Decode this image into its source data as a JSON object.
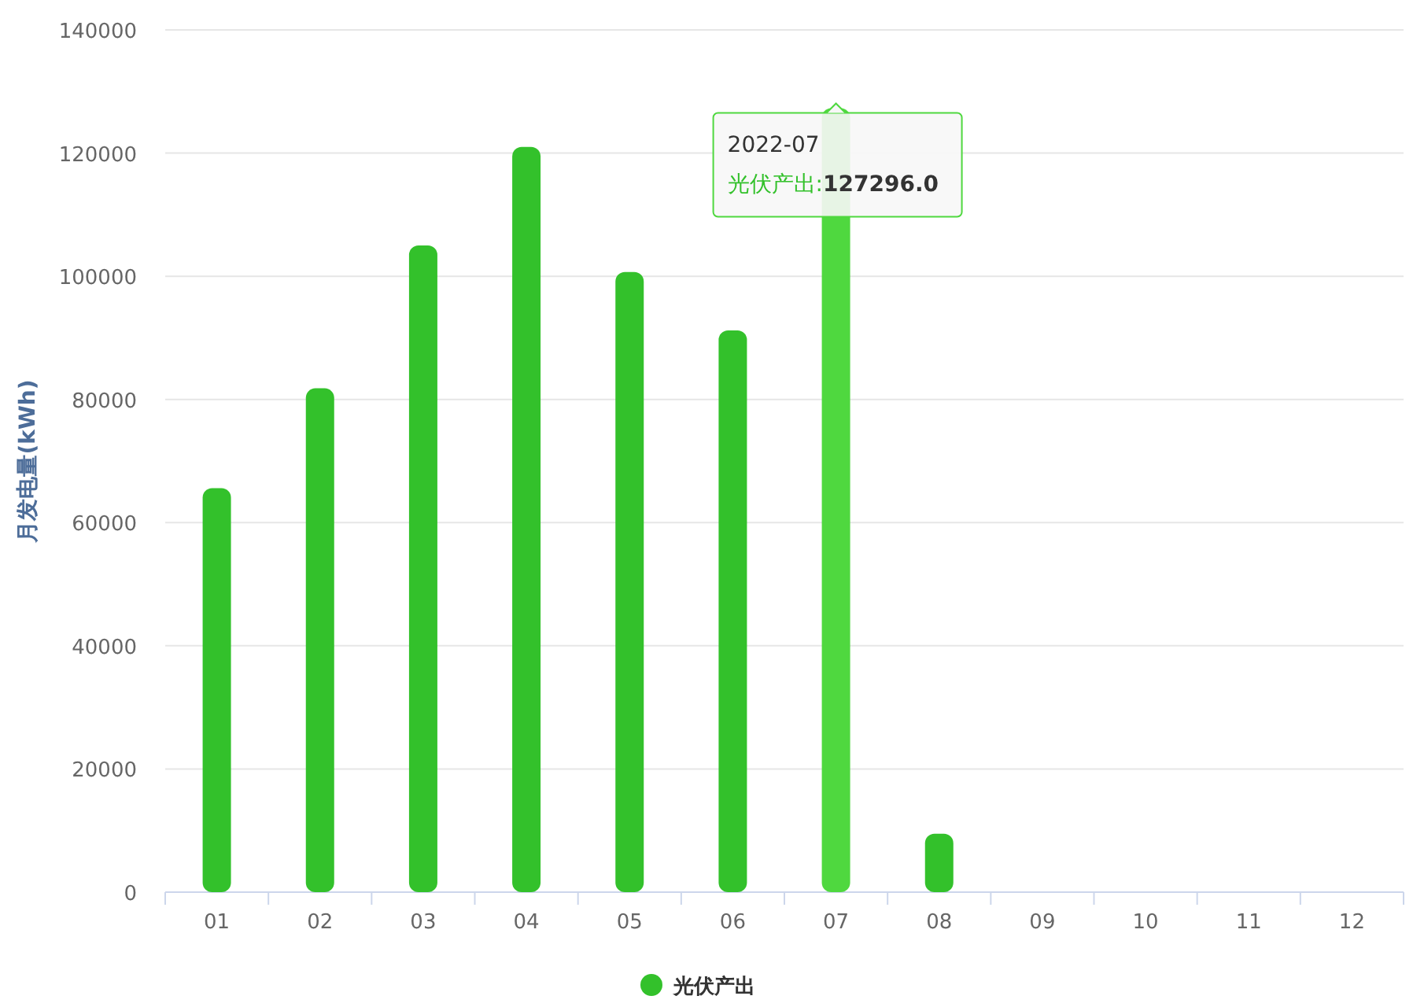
{
  "chart_data": {
    "type": "bar",
    "categories": [
      "01",
      "02",
      "03",
      "04",
      "05",
      "06",
      "07",
      "08",
      "09",
      "10",
      "11",
      "12"
    ],
    "series": [
      {
        "name": "光伏产出",
        "color": "#33c12b",
        "colors": [
          "#33c12b",
          "#33c12b",
          "#33c12b",
          "#33c12b",
          "#33c12b",
          "#33c12b",
          "#4fd83f",
          "#33c12b",
          null,
          null,
          null,
          null
        ],
        "values": [
          65600,
          81800,
          105000,
          121000,
          100700,
          91200,
          127296,
          9500,
          null,
          null,
          null,
          null
        ]
      }
    ],
    "ylabel": "月发电量(kWh)",
    "ylim": [
      0,
      140000
    ],
    "yticks": [
      0,
      20000,
      40000,
      60000,
      80000,
      100000,
      120000,
      140000
    ],
    "grid": "y",
    "legend": "bottom",
    "annotations": [
      {
        "text": "2022-07\n光伏产出:127296.0",
        "x": "07",
        "y": 127296
      }
    ]
  }
}
